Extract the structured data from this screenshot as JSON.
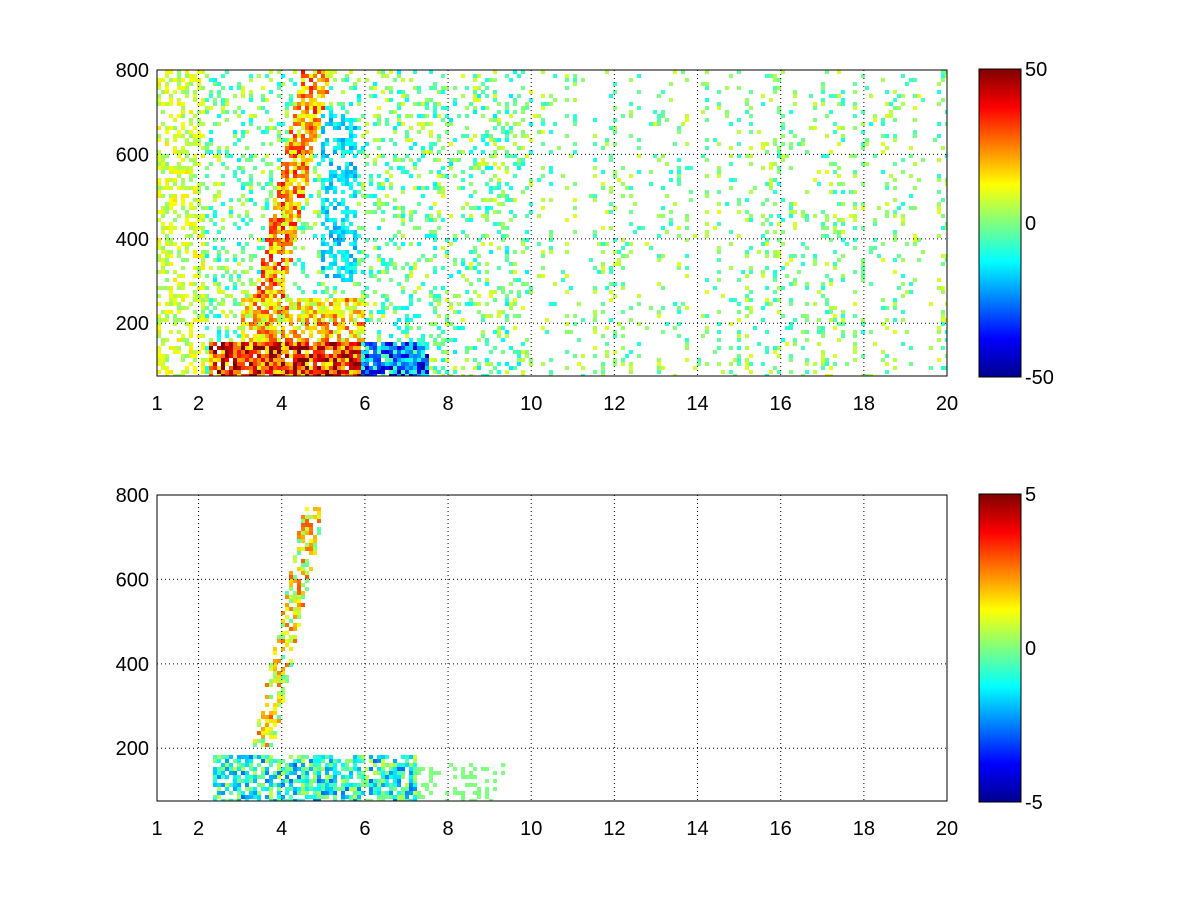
{
  "chart_data": [
    {
      "type": "heatmap",
      "xlim": [
        1,
        20
      ],
      "ylim": [
        75,
        800
      ],
      "x_ticks": [
        1,
        2,
        4,
        6,
        8,
        10,
        12,
        14,
        16,
        18,
        20
      ],
      "x_tick_labels": [
        "1",
        "2",
        "4",
        "6",
        "8",
        "10",
        "12",
        "14",
        "16",
        "18",
        "20"
      ],
      "y_ticks": [
        200,
        400,
        600,
        800
      ],
      "y_tick_labels": [
        "200",
        "400",
        "600",
        "800"
      ],
      "grid": true,
      "colormap": "jet",
      "clim": [
        -50,
        50
      ],
      "colorbar_ticks": [
        50,
        0,
        -50
      ],
      "colorbar_tick_labels": [
        "50",
        "0",
        "-50"
      ],
      "colorbar_location": "right"
    },
    {
      "type": "heatmap",
      "xlim": [
        1,
        20
      ],
      "ylim": [
        75,
        800
      ],
      "x_ticks": [
        1,
        2,
        4,
        6,
        8,
        10,
        12,
        14,
        16,
        18,
        20
      ],
      "x_tick_labels": [
        "1",
        "2",
        "4",
        "6",
        "8",
        "10",
        "12",
        "14",
        "16",
        "18",
        "20"
      ],
      "y_ticks": [
        200,
        400,
        600,
        800
      ],
      "y_tick_labels": [
        "200",
        "400",
        "600",
        "800"
      ],
      "grid": true,
      "colormap": "jet",
      "clim": [
        -5,
        5
      ],
      "colorbar_ticks": [
        5,
        0,
        -5
      ],
      "colorbar_tick_labels": [
        "5",
        "0",
        "-5"
      ],
      "colorbar_location": "right"
    }
  ]
}
